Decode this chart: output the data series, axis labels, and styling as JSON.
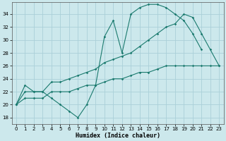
{
  "bg_color": "#cce8ec",
  "grid_color": "#aad0d8",
  "line_color": "#1a7a6e",
  "xlabel": "Humidex (Indice chaleur)",
  "xlim": [
    -0.5,
    23.5
  ],
  "ylim": [
    17.0,
    35.8
  ],
  "yticks": [
    18,
    20,
    22,
    24,
    26,
    28,
    30,
    32,
    34
  ],
  "xticks": [
    0,
    1,
    2,
    3,
    4,
    5,
    6,
    7,
    8,
    9,
    10,
    11,
    12,
    13,
    14,
    15,
    16,
    17,
    18,
    19,
    20,
    21,
    22,
    23
  ],
  "line1_x": [
    0,
    1,
    2,
    3,
    4,
    5,
    6,
    7,
    8,
    9,
    10,
    11,
    12,
    13,
    14,
    15,
    16,
    17,
    18,
    19,
    20,
    21
  ],
  "line1_y": [
    20,
    23,
    22,
    22,
    21,
    20,
    19,
    18,
    20,
    23,
    30.5,
    33,
    28,
    34,
    35,
    35.5,
    35.5,
    35,
    34,
    33,
    31,
    28.5
  ],
  "line2_x": [
    0,
    1,
    2,
    3,
    4,
    5,
    6,
    7,
    8,
    9,
    10,
    11,
    12,
    13,
    14,
    15,
    16,
    17,
    18,
    19,
    20,
    21,
    22,
    23
  ],
  "line2_y": [
    20,
    22,
    22,
    22,
    23.5,
    23.5,
    24,
    24.5,
    25,
    25.5,
    26.5,
    27,
    27.5,
    28,
    29,
    30,
    31,
    32,
    32.5,
    34,
    33.5,
    31,
    28.5,
    26
  ],
  "line3_x": [
    0,
    1,
    2,
    3,
    4,
    5,
    6,
    7,
    8,
    9,
    10,
    11,
    12,
    13,
    14,
    15,
    16,
    17,
    18,
    19,
    20,
    21,
    22,
    23
  ],
  "line3_y": [
    20,
    21,
    21,
    21,
    22,
    22,
    22,
    22.5,
    23,
    23,
    23.5,
    24,
    24,
    24.5,
    25,
    25,
    25.5,
    26,
    26,
    26,
    26,
    26,
    26,
    26
  ]
}
